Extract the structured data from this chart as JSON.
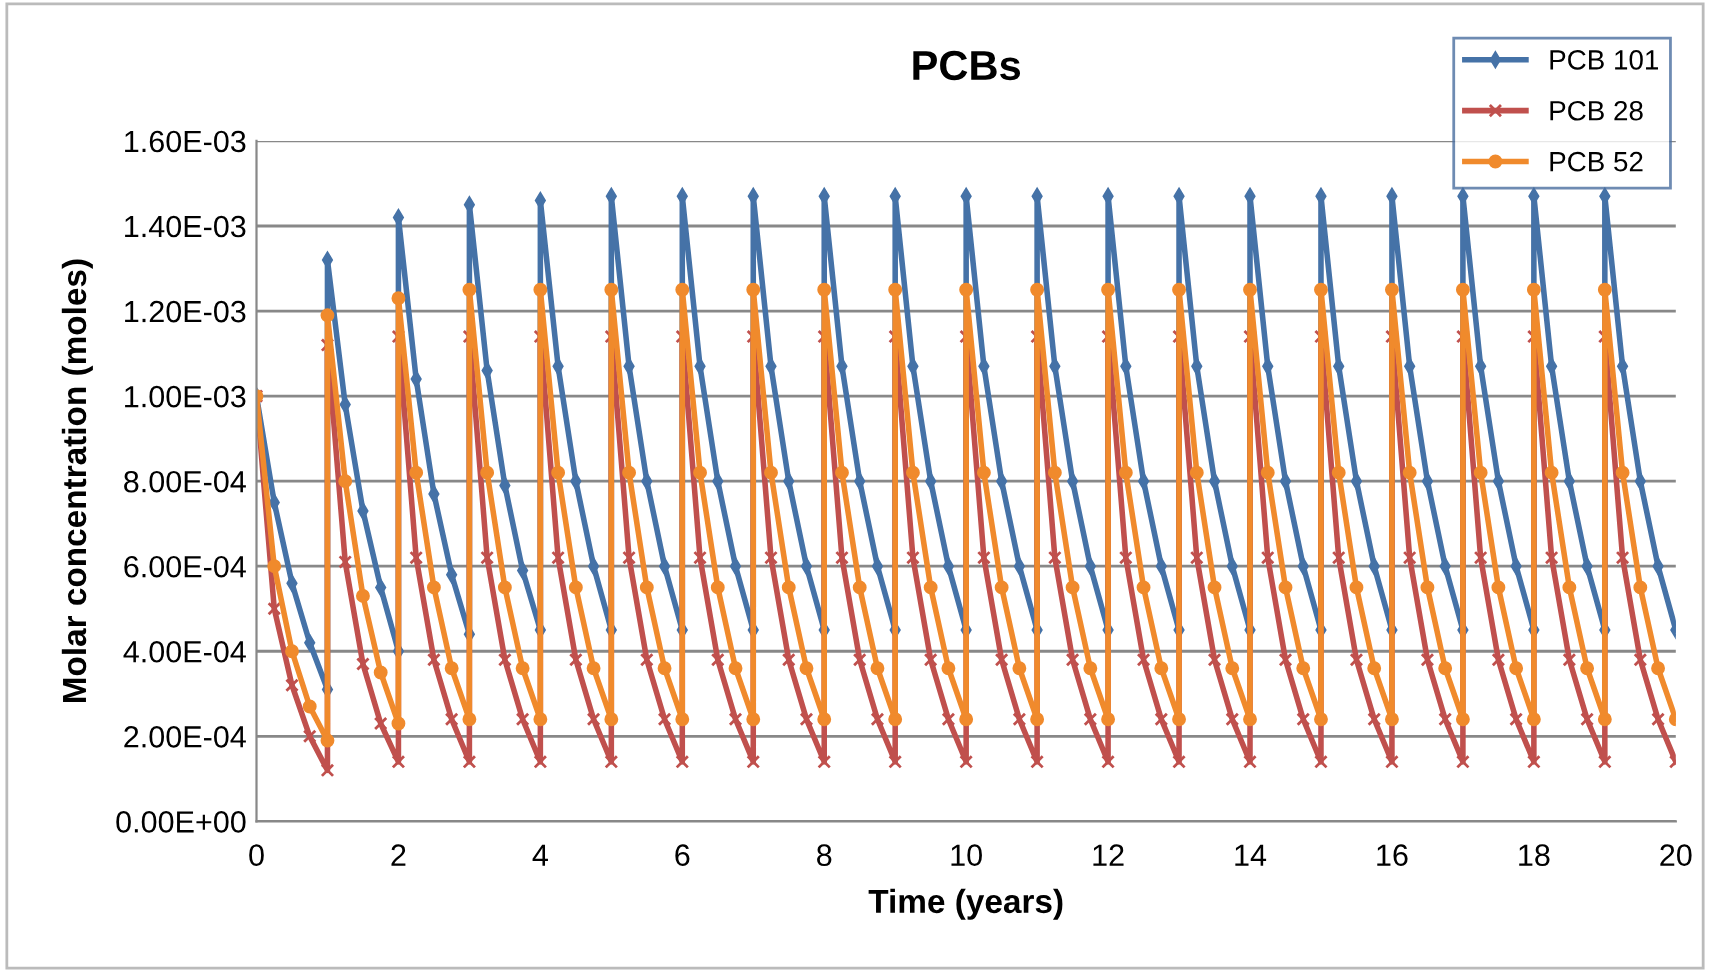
{
  "chart_data": {
    "type": "line",
    "title": "PCBs",
    "xlabel": "Time (years)",
    "ylabel": "Molar concentration (moles)",
    "x": [
      0,
      0.25,
      0.5,
      0.75,
      1,
      1,
      1.25,
      1.5,
      1.75,
      2,
      2,
      2.25,
      2.5,
      2.75,
      3,
      3,
      3.25,
      3.5,
      3.75,
      4,
      4,
      4.25,
      4.5,
      4.75,
      5,
      5,
      5.25,
      5.5,
      5.75,
      6,
      6,
      6.25,
      6.5,
      6.75,
      7,
      7,
      7.25,
      7.5,
      7.75,
      8,
      8,
      8.25,
      8.5,
      8.75,
      9,
      9,
      9.25,
      9.5,
      9.75,
      10,
      10,
      10.25,
      10.5,
      10.75,
      11,
      11,
      11.25,
      11.5,
      11.75,
      12,
      12,
      12.25,
      12.5,
      12.75,
      13,
      13,
      13.25,
      13.5,
      13.75,
      14,
      14,
      14.25,
      14.5,
      14.75,
      15,
      15,
      15.25,
      15.5,
      15.75,
      16,
      16,
      16.25,
      16.5,
      16.75,
      17,
      17,
      17.25,
      17.5,
      17.75,
      18,
      18,
      18.25,
      18.5,
      18.75,
      19,
      19,
      19.25,
      19.5,
      19.75,
      20
    ],
    "series": [
      {
        "name": "PCB 101",
        "color": "#4572a7",
        "marker": "diamond",
        "values": [
          0.001,
          0.00075,
          0.00056,
          0.00042,
          0.00031,
          0.00132,
          0.00098,
          0.00073,
          0.00055,
          0.0004,
          0.00142,
          0.00104,
          0.00077,
          0.00058,
          0.00044,
          0.00145,
          0.00106,
          0.00079,
          0.00059,
          0.00045,
          0.00146,
          0.00107,
          0.0008,
          0.0006,
          0.00045,
          0.00147,
          0.00107,
          0.0008,
          0.0006,
          0.00045,
          0.00147,
          0.00107,
          0.0008,
          0.0006,
          0.00045,
          0.00147,
          0.00107,
          0.0008,
          0.0006,
          0.00045,
          0.00147,
          0.00107,
          0.0008,
          0.0006,
          0.00045,
          0.00147,
          0.00107,
          0.0008,
          0.0006,
          0.00045,
          0.00147,
          0.00107,
          0.0008,
          0.0006,
          0.00045,
          0.00147,
          0.00107,
          0.0008,
          0.0006,
          0.00045,
          0.00147,
          0.00107,
          0.0008,
          0.0006,
          0.00045,
          0.00147,
          0.00107,
          0.0008,
          0.0006,
          0.00045,
          0.00147,
          0.00107,
          0.0008,
          0.0006,
          0.00045,
          0.00147,
          0.00107,
          0.0008,
          0.0006,
          0.00045,
          0.00147,
          0.00107,
          0.0008,
          0.0006,
          0.00045,
          0.00147,
          0.00107,
          0.0008,
          0.0006,
          0.00045,
          0.00147,
          0.00107,
          0.0008,
          0.0006,
          0.00045,
          0.00147,
          0.00107,
          0.0008,
          0.0006,
          0.00045
        ]
      },
      {
        "name": "PCB 28",
        "color": "#c0504d",
        "marker": "cross",
        "values": [
          0.001,
          0.0005,
          0.00032,
          0.0002,
          0.00012,
          0.00112,
          0.00061,
          0.00037,
          0.00023,
          0.00014,
          0.00114,
          0.00062,
          0.00038,
          0.00024,
          0.00014,
          0.00114,
          0.00062,
          0.00038,
          0.00024,
          0.00014,
          0.00114,
          0.00062,
          0.00038,
          0.00024,
          0.00014,
          0.00114,
          0.00062,
          0.00038,
          0.00024,
          0.00014,
          0.00114,
          0.00062,
          0.00038,
          0.00024,
          0.00014,
          0.00114,
          0.00062,
          0.00038,
          0.00024,
          0.00014,
          0.00114,
          0.00062,
          0.00038,
          0.00024,
          0.00014,
          0.00114,
          0.00062,
          0.00038,
          0.00024,
          0.00014,
          0.00114,
          0.00062,
          0.00038,
          0.00024,
          0.00014,
          0.00114,
          0.00062,
          0.00038,
          0.00024,
          0.00014,
          0.00114,
          0.00062,
          0.00038,
          0.00024,
          0.00014,
          0.00114,
          0.00062,
          0.00038,
          0.00024,
          0.00014,
          0.00114,
          0.00062,
          0.00038,
          0.00024,
          0.00014,
          0.00114,
          0.00062,
          0.00038,
          0.00024,
          0.00014,
          0.00114,
          0.00062,
          0.00038,
          0.00024,
          0.00014,
          0.00114,
          0.00062,
          0.00038,
          0.00024,
          0.00014,
          0.00114,
          0.00062,
          0.00038,
          0.00024,
          0.00014,
          0.00114,
          0.00062,
          0.00038,
          0.00024,
          0.00014
        ]
      },
      {
        "name": "PCB 52",
        "color": "#f08a2c",
        "marker": "circle",
        "values": [
          0.001,
          0.0006,
          0.0004,
          0.00027,
          0.00019,
          0.00119,
          0.0008,
          0.00053,
          0.00035,
          0.00023,
          0.00123,
          0.00082,
          0.00055,
          0.00036,
          0.00024,
          0.00125,
          0.00082,
          0.00055,
          0.00036,
          0.00024,
          0.00125,
          0.00082,
          0.00055,
          0.00036,
          0.00024,
          0.00125,
          0.00082,
          0.00055,
          0.00036,
          0.00024,
          0.00125,
          0.00082,
          0.00055,
          0.00036,
          0.00024,
          0.00125,
          0.00082,
          0.00055,
          0.00036,
          0.00024,
          0.00125,
          0.00082,
          0.00055,
          0.00036,
          0.00024,
          0.00125,
          0.00082,
          0.00055,
          0.00036,
          0.00024,
          0.00125,
          0.00082,
          0.00055,
          0.00036,
          0.00024,
          0.00125,
          0.00082,
          0.00055,
          0.00036,
          0.00024,
          0.00125,
          0.00082,
          0.00055,
          0.00036,
          0.00024,
          0.00125,
          0.00082,
          0.00055,
          0.00036,
          0.00024,
          0.00125,
          0.00082,
          0.00055,
          0.00036,
          0.00024,
          0.00125,
          0.00082,
          0.00055,
          0.00036,
          0.00024,
          0.00125,
          0.00082,
          0.00055,
          0.00036,
          0.00024,
          0.00125,
          0.00082,
          0.00055,
          0.00036,
          0.00024,
          0.00125,
          0.00082,
          0.00055,
          0.00036,
          0.00024,
          0.00125,
          0.00082,
          0.00055,
          0.00036,
          0.00024
        ]
      }
    ],
    "xlim": [
      0,
      20
    ],
    "xticks": [
      0,
      2,
      4,
      6,
      8,
      10,
      12,
      14,
      16,
      18,
      20
    ],
    "ylim": [
      0,
      0.0016
    ],
    "yticks": [
      {
        "value": 0,
        "label": "0.00E+00"
      },
      {
        "value": 0.0002,
        "label": "2.00E-04"
      },
      {
        "value": 0.0004,
        "label": "4.00E-04"
      },
      {
        "value": 0.0006,
        "label": "6.00E-04"
      },
      {
        "value": 0.0008,
        "label": "8.00E-04"
      },
      {
        "value": 0.001,
        "label": "1.00E-03"
      },
      {
        "value": 0.0012,
        "label": "1.20E-03"
      },
      {
        "value": 0.0014,
        "label": "1.40E-03"
      },
      {
        "value": 0.0016,
        "label": "1.60E-03"
      }
    ],
    "grid": "y",
    "legend": "top right",
    "line_style": "solid"
  }
}
